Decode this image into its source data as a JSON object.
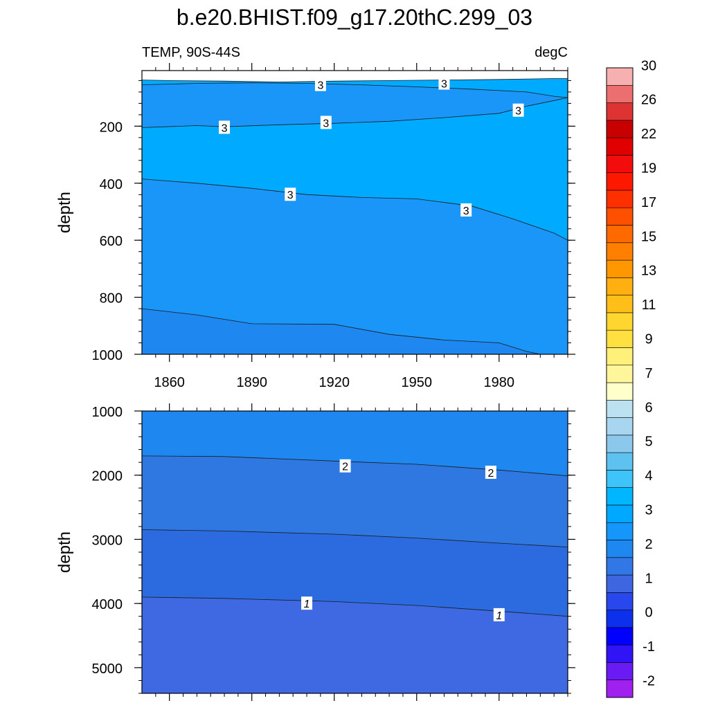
{
  "chart_data": {
    "type": "contour",
    "title": "b.e20.BHIST.f09_g17.20thC.299_03",
    "left_label": "TEMP, 90S-44S",
    "right_label": "degC",
    "x_ticks": [
      1860,
      1890,
      1920,
      1950,
      1980
    ],
    "x_range": [
      1850,
      2005
    ],
    "colorbar": {
      "colors": [
        "#a020f0",
        "#6a1af3",
        "#3014f6",
        "#0000ff",
        "#0c30ec",
        "#2848ed",
        "#3e66e0",
        "#3277e6",
        "#1e88f0",
        "#1496fa",
        "#00a8ff",
        "#00b6ff",
        "#3ec4f8",
        "#5ec2f0",
        "#8cc8ec",
        "#a8d6f0",
        "#bce2f2",
        "#ffffcc",
        "#fff69c",
        "#fff07a",
        "#ffe040",
        "#ffd530",
        "#ffbf18",
        "#ffb010",
        "#ff9800",
        "#ff8000",
        "#ff6a00",
        "#ff5000",
        "#ff3000",
        "#ff1800",
        "#f20c0c",
        "#e00000",
        "#c80000",
        "#dd3333",
        "#ec6f6f",
        "#f6b0b0"
      ],
      "labels": [
        {
          "text": "-2",
          "boundary": 1
        },
        {
          "text": "-1",
          "boundary": 2
        },
        {
          "text": "0",
          "boundary": 3
        },
        {
          "text": "1",
          "boundary": 4
        },
        {
          "text": "2",
          "boundary": 5
        },
        {
          "text": "3",
          "boundary": 6
        },
        {
          "text": "4",
          "boundary": 7
        },
        {
          "text": "5",
          "boundary": 8
        },
        {
          "text": "6",
          "boundary": 9
        },
        {
          "text": "7",
          "boundary": 10
        },
        {
          "text": "9",
          "boundary": 11
        },
        {
          "text": "11",
          "boundary": 12
        },
        {
          "text": "13",
          "boundary": 13
        },
        {
          "text": "15",
          "boundary": 14
        },
        {
          "text": "17",
          "boundary": 15
        },
        {
          "text": "19",
          "boundary": 16
        },
        {
          "text": "22",
          "boundary": 17
        },
        {
          "text": "26",
          "boundary": 18
        },
        {
          "text": "30",
          "boundary": 19
        }
      ]
    },
    "panels": [
      {
        "name": "upper",
        "ylabel": "depth",
        "y_ticks": [
          200,
          400,
          600,
          800,
          1000
        ],
        "y_range": [
          5,
          1000
        ],
        "x_tick_labels_shown": true,
        "bands": [
          {
            "color": "#00aaff",
            "upper": [
              [
                1850,
                38
              ],
              [
                1860,
                40
              ],
              [
                1880,
                42
              ],
              [
                1900,
                45
              ],
              [
                1920,
                42
              ],
              [
                1940,
                40
              ],
              [
                1960,
                38
              ],
              [
                1980,
                36
              ],
              [
                2000,
                33
              ],
              [
                2005,
                33
              ]
            ]
          },
          {
            "color": "#1a96f8",
            "upper": [
              [
                1850,
                55
              ],
              [
                1870,
                50
              ],
              [
                1890,
                48
              ],
              [
                1910,
                50
              ],
              [
                1930,
                55
              ],
              [
                1950,
                62
              ],
              [
                1970,
                70
              ],
              [
                1990,
                80
              ],
              [
                2000,
                95
              ],
              [
                2005,
                100
              ]
            ]
          },
          {
            "color": "#00aaff",
            "upper": [
              [
                1850,
                205
              ],
              [
                1870,
                198
              ],
              [
                1880,
                202
              ],
              [
                1900,
                195
              ],
              [
                1920,
                190
              ],
              [
                1940,
                183
              ],
              [
                1960,
                170
              ],
              [
                1980,
                155
              ],
              [
                1990,
                130
              ],
              [
                2000,
                110
              ],
              [
                2005,
                100
              ]
            ]
          },
          {
            "color": "#1a96f8",
            "upper": [
              [
                1850,
                385
              ],
              [
                1870,
                400
              ],
              [
                1890,
                418
              ],
              [
                1910,
                440
              ],
              [
                1930,
                450
              ],
              [
                1950,
                455
              ],
              [
                1970,
                480
              ],
              [
                1985,
                525
              ],
              [
                2000,
                575
              ],
              [
                2005,
                600
              ]
            ]
          },
          {
            "color": "#1e88f0",
            "upper": [
              [
                1850,
                840
              ],
              [
                1870,
                862
              ],
              [
                1890,
                893
              ],
              [
                1920,
                895
              ],
              [
                1940,
                930
              ],
              [
                1960,
                950
              ],
              [
                1980,
                960
              ],
              [
                1990,
                990
              ],
              [
                2000,
                1010
              ],
              [
                2005,
                1010
              ]
            ]
          }
        ],
        "labels": [
          {
            "text": "3",
            "x": 1915,
            "y": 55
          },
          {
            "text": "3",
            "x": 1960,
            "y": 50
          },
          {
            "text": "3",
            "x": 1987,
            "y": 145
          },
          {
            "text": "3",
            "x": 1880,
            "y": 205
          },
          {
            "text": "3",
            "x": 1917,
            "y": 188
          },
          {
            "text": "3",
            "x": 1904,
            "y": 440
          },
          {
            "text": "3",
            "x": 1968,
            "y": 495
          }
        ]
      },
      {
        "name": "lower",
        "ylabel": "depth",
        "y_ticks": [
          1000,
          2000,
          3000,
          4000,
          5000
        ],
        "y_range": [
          1000,
          5400
        ],
        "x_tick_labels_shown": false,
        "bands": [
          {
            "color": "#1e88f0",
            "upper": [
              [
                1850,
                1000
              ],
              [
                2005,
                1000
              ]
            ]
          },
          {
            "color": "#2f78e2",
            "upper": [
              [
                1850,
                1700
              ],
              [
                1880,
                1710
              ],
              [
                1920,
                1780
              ],
              [
                1950,
                1830
              ],
              [
                1980,
                1920
              ],
              [
                2005,
                2010
              ]
            ]
          },
          {
            "color": "#2c6ae0",
            "upper": [
              [
                1850,
                2850
              ],
              [
                1880,
                2870
              ],
              [
                1920,
                2920
              ],
              [
                1950,
                2980
              ],
              [
                1980,
                3060
              ],
              [
                2005,
                3120
              ]
            ]
          },
          {
            "color": "#3f69e2",
            "upper": [
              [
                1850,
                3900
              ],
              [
                1880,
                3920
              ],
              [
                1920,
                3970
              ],
              [
                1950,
                4030
              ],
              [
                1980,
                4120
              ],
              [
                2005,
                4200
              ]
            ]
          }
        ],
        "labels": [
          {
            "text": "2",
            "x": 1924,
            "y": 1860
          },
          {
            "text": "2",
            "x": 1977,
            "y": 1960
          },
          {
            "text": "1",
            "x": 1910,
            "y": 4000
          },
          {
            "text": "1",
            "x": 1980,
            "y": 4180
          }
        ]
      }
    ]
  }
}
